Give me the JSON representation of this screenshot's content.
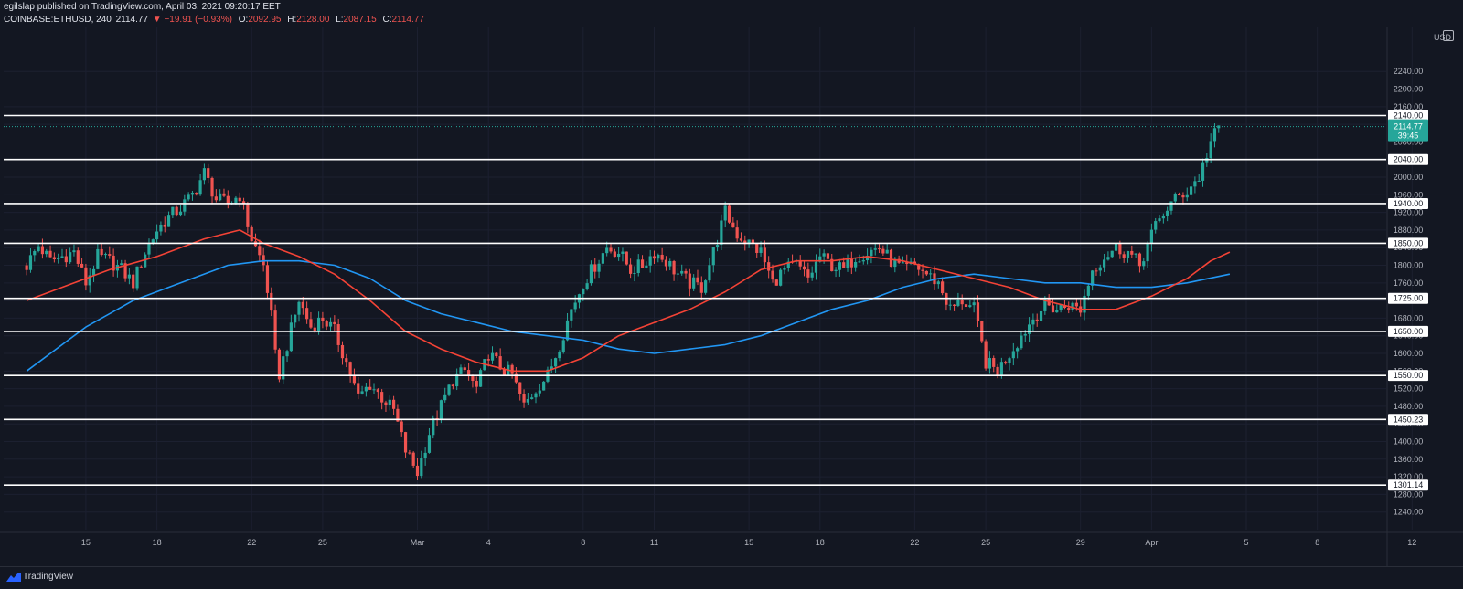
{
  "header": {
    "line1": "egilslap published on TradingView.com, April 03, 2021 09:20:17 EET",
    "symbol": "COINBASE:ETHUSD, 240",
    "last": "2114.77",
    "change": "▼ −19.91 (−0.93%)",
    "open_label": "O:",
    "open": "2092.95",
    "high_label": "H:",
    "high": "2128.00",
    "low_label": "L:",
    "low": "2087.15",
    "close_label": "C:",
    "close": "2114.77"
  },
  "price_axis": {
    "currency": "USD",
    "current_price": "2114.77",
    "countdown": "39:45",
    "current_price_color": "#26a69a"
  },
  "footer": {
    "brand": "TradingView"
  },
  "colors": {
    "up": "#26a69a",
    "down": "#ef5350",
    "ma_fast": "#f44336",
    "ma_slow": "#2196f3",
    "level_line": "#ffffff",
    "background": "#131722"
  },
  "chart_data": {
    "type": "candlestick",
    "interval": "240",
    "ylim": [
      1200,
      2340
    ],
    "y_ticks": [
      1240,
      1280,
      1320,
      1360,
      1400,
      1440,
      1480,
      1520,
      1560,
      1600,
      1640,
      1680,
      1720,
      1760,
      1800,
      1840,
      1880,
      1920,
      1960,
      2000,
      2040,
      2080,
      2120,
      2160,
      2200,
      2240
    ],
    "x_ticks": [
      {
        "label": "15",
        "t": 1.0
      },
      {
        "label": "18",
        "t": 4.0
      },
      {
        "label": "22",
        "t": 8.0
      },
      {
        "label": "25",
        "t": 11.0
      },
      {
        "label": "Mar",
        "t": 15.0
      },
      {
        "label": "4",
        "t": 18.0
      },
      {
        "label": "8",
        "t": 22.0
      },
      {
        "label": "11",
        "t": 25.0
      },
      {
        "label": "15",
        "t": 29.0
      },
      {
        "label": "18",
        "t": 32.0
      },
      {
        "label": "22",
        "t": 36.0
      },
      {
        "label": "25",
        "t": 39.0
      },
      {
        "label": "29",
        "t": 43.0
      },
      {
        "label": "Apr",
        "t": 46.0
      },
      {
        "label": "5",
        "t": 50.0
      },
      {
        "label": "8",
        "t": 53.0
      },
      {
        "label": "12",
        "t": 57.0
      }
    ],
    "horizontal_levels": [
      "2140.00",
      "2040.00",
      "1940.00",
      "1850.00",
      "1725.00",
      "1650.00",
      "1550.00",
      "1450.23",
      "1301.14"
    ],
    "close_path": [
      [
        -1.5,
        1800
      ],
      [
        -1.0,
        1845
      ],
      [
        -0.5,
        1810
      ],
      [
        0.0,
        1820
      ],
      [
        0.5,
        1830
      ],
      [
        1.0,
        1760
      ],
      [
        1.5,
        1820
      ],
      [
        2.0,
        1810
      ],
      [
        2.5,
        1790
      ],
      [
        3.0,
        1760
      ],
      [
        3.5,
        1830
      ],
      [
        4.0,
        1880
      ],
      [
        4.5,
        1910
      ],
      [
        5.0,
        1930
      ],
      [
        5.5,
        1960
      ],
      [
        6.0,
        2010
      ],
      [
        6.5,
        1950
      ],
      [
        7.0,
        1940
      ],
      [
        7.5,
        1960
      ],
      [
        8.0,
        1860
      ],
      [
        8.5,
        1800
      ],
      [
        8.8,
        1700
      ],
      [
        9.1,
        1540
      ],
      [
        9.5,
        1620
      ],
      [
        10.0,
        1720
      ],
      [
        10.5,
        1660
      ],
      [
        11.0,
        1680
      ],
      [
        11.5,
        1650
      ],
      [
        12.0,
        1580
      ],
      [
        12.5,
        1500
      ],
      [
        13.0,
        1530
      ],
      [
        13.5,
        1500
      ],
      [
        14.0,
        1470
      ],
      [
        14.5,
        1380
      ],
      [
        15.0,
        1330
      ],
      [
        15.5,
        1420
      ],
      [
        16.0,
        1480
      ],
      [
        16.5,
        1540
      ],
      [
        17.0,
        1560
      ],
      [
        17.5,
        1520
      ],
      [
        18.0,
        1600
      ],
      [
        18.5,
        1570
      ],
      [
        19.0,
        1550
      ],
      [
        19.5,
        1480
      ],
      [
        20.0,
        1520
      ],
      [
        20.5,
        1550
      ],
      [
        21.0,
        1620
      ],
      [
        21.5,
        1700
      ],
      [
        22.0,
        1760
      ],
      [
        22.5,
        1800
      ],
      [
        23.0,
        1840
      ],
      [
        23.5,
        1830
      ],
      [
        24.0,
        1790
      ],
      [
        24.5,
        1800
      ],
      [
        25.0,
        1830
      ],
      [
        25.5,
        1810
      ],
      [
        26.0,
        1780
      ],
      [
        26.5,
        1760
      ],
      [
        27.0,
        1750
      ],
      [
        27.5,
        1830
      ],
      [
        28.0,
        1920
      ],
      [
        28.5,
        1870
      ],
      [
        29.0,
        1850
      ],
      [
        29.5,
        1830
      ],
      [
        30.0,
        1760
      ],
      [
        30.5,
        1790
      ],
      [
        31.0,
        1800
      ],
      [
        31.5,
        1770
      ],
      [
        32.0,
        1820
      ],
      [
        32.5,
        1800
      ],
      [
        33.0,
        1790
      ],
      [
        33.5,
        1820
      ],
      [
        34.0,
        1830
      ],
      [
        34.5,
        1840
      ],
      [
        35.0,
        1810
      ],
      [
        35.5,
        1790
      ],
      [
        36.0,
        1800
      ],
      [
        36.5,
        1780
      ],
      [
        37.0,
        1760
      ],
      [
        37.5,
        1700
      ],
      [
        38.0,
        1720
      ],
      [
        38.5,
        1700
      ],
      [
        39.0,
        1580
      ],
      [
        39.5,
        1560
      ],
      [
        40.0,
        1600
      ],
      [
        40.5,
        1640
      ],
      [
        41.0,
        1680
      ],
      [
        41.5,
        1710
      ],
      [
        42.0,
        1700
      ],
      [
        42.5,
        1710
      ],
      [
        43.0,
        1700
      ],
      [
        43.5,
        1790
      ],
      [
        44.0,
        1820
      ],
      [
        44.5,
        1840
      ],
      [
        45.0,
        1830
      ],
      [
        45.5,
        1800
      ],
      [
        46.0,
        1870
      ],
      [
        46.5,
        1920
      ],
      [
        47.0,
        1950
      ],
      [
        47.5,
        1970
      ],
      [
        48.0,
        2000
      ],
      [
        48.5,
        2080
      ],
      [
        48.8,
        2110
      ]
    ],
    "ma_fast": [
      [
        -1.5,
        1720
      ],
      [
        0.0,
        1750
      ],
      [
        2.0,
        1790
      ],
      [
        4.0,
        1820
      ],
      [
        6.0,
        1860
      ],
      [
        7.5,
        1880
      ],
      [
        8.5,
        1850
      ],
      [
        10.0,
        1820
      ],
      [
        11.5,
        1780
      ],
      [
        13.0,
        1720
      ],
      [
        14.5,
        1650
      ],
      [
        16.0,
        1610
      ],
      [
        17.5,
        1580
      ],
      [
        19.0,
        1560
      ],
      [
        20.5,
        1560
      ],
      [
        22.0,
        1590
      ],
      [
        23.5,
        1640
      ],
      [
        25.0,
        1670
      ],
      [
        26.5,
        1700
      ],
      [
        28.0,
        1740
      ],
      [
        29.5,
        1790
      ],
      [
        31.0,
        1810
      ],
      [
        32.5,
        1810
      ],
      [
        34.0,
        1820
      ],
      [
        35.5,
        1810
      ],
      [
        37.0,
        1790
      ],
      [
        38.5,
        1770
      ],
      [
        40.0,
        1750
      ],
      [
        41.5,
        1720
      ],
      [
        43.0,
        1700
      ],
      [
        44.5,
        1700
      ],
      [
        46.0,
        1730
      ],
      [
        47.5,
        1770
      ],
      [
        48.5,
        1810
      ],
      [
        49.3,
        1830
      ]
    ],
    "ma_slow": [
      [
        -1.5,
        1560
      ],
      [
        1.0,
        1660
      ],
      [
        3.0,
        1720
      ],
      [
        5.0,
        1760
      ],
      [
        7.0,
        1800
      ],
      [
        8.5,
        1810
      ],
      [
        10.0,
        1810
      ],
      [
        11.5,
        1800
      ],
      [
        13.0,
        1770
      ],
      [
        14.5,
        1720
      ],
      [
        16.0,
        1690
      ],
      [
        17.5,
        1670
      ],
      [
        19.0,
        1650
      ],
      [
        20.5,
        1640
      ],
      [
        22.0,
        1630
      ],
      [
        23.5,
        1610
      ],
      [
        25.0,
        1600
      ],
      [
        26.5,
        1610
      ],
      [
        28.0,
        1620
      ],
      [
        29.5,
        1640
      ],
      [
        31.0,
        1670
      ],
      [
        32.5,
        1700
      ],
      [
        34.0,
        1720
      ],
      [
        35.5,
        1750
      ],
      [
        37.0,
        1770
      ],
      [
        38.5,
        1780
      ],
      [
        40.0,
        1770
      ],
      [
        41.5,
        1760
      ],
      [
        43.0,
        1760
      ],
      [
        44.5,
        1750
      ],
      [
        46.0,
        1750
      ],
      [
        47.5,
        1760
      ],
      [
        49.3,
        1780
      ]
    ],
    "current_price": 2114.77
  }
}
